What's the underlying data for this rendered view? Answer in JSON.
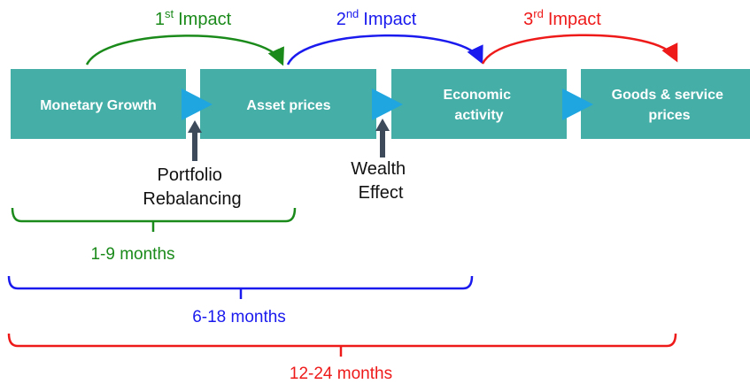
{
  "impacts": [
    {
      "number": "1",
      "suffix": "st",
      "word": "Impact"
    },
    {
      "number": "2",
      "suffix": "nd",
      "word": "Impact"
    },
    {
      "number": "3",
      "suffix": "rd",
      "word": "Impact"
    }
  ],
  "stages": [
    {
      "lines": [
        "Monetary Growth"
      ]
    },
    {
      "lines": [
        "Asset prices"
      ]
    },
    {
      "lines": [
        "Economic",
        "activity"
      ]
    },
    {
      "lines": [
        "Goods & service",
        "prices"
      ]
    }
  ],
  "drivers": [
    {
      "lines": [
        "Portfolio",
        "Rebalancing"
      ]
    },
    {
      "lines": [
        "Wealth",
        "Effect"
      ]
    }
  ],
  "timeframes": [
    "1-9 months",
    "6-18 months",
    "12-24 months"
  ]
}
